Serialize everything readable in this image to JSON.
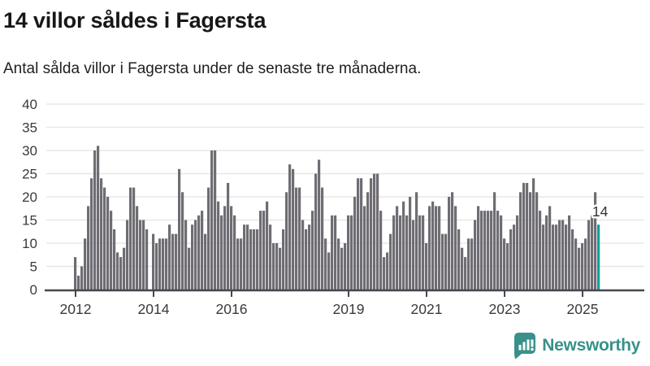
{
  "header": {
    "title": "14 villor såldes i Fagersta",
    "subtitle": "Antal sålda villor i Fagersta under de senaste tre månaderna."
  },
  "annotation": {
    "last_value_label": "14"
  },
  "logo": {
    "text": "Newsworthy"
  },
  "colors": {
    "bar": "#6f6d73",
    "highlight": "#10a09b",
    "grid": "#e7e7e7",
    "axis": "#47474b",
    "tick_text": "#3a3a3f",
    "annotation_text": "#333333",
    "logo": "#38918a"
  },
  "chart_data": {
    "type": "bar",
    "title": "14 villor såldes i Fagersta",
    "subtitle": "Antal sålda villor i Fagersta under de senaste tre månaderna.",
    "x_start": "2012-01",
    "x_end": "2025-06",
    "x_unit": "month",
    "ylim": [
      0,
      40
    ],
    "yticks": [
      0,
      5,
      10,
      15,
      20,
      25,
      30,
      35,
      40
    ],
    "xtick_years": [
      2012,
      2014,
      2016,
      2019,
      2021,
      2023,
      2025
    ],
    "grid": "horizontal",
    "legend": "none",
    "highlight_last_bar": true,
    "last_value": 14,
    "values": [
      7,
      3,
      5,
      11,
      18,
      24,
      30,
      31,
      24,
      22,
      20,
      17,
      13,
      8,
      7,
      9,
      15,
      22,
      22,
      18,
      15,
      15,
      13,
      0,
      12,
      10,
      11,
      11,
      11,
      14,
      12,
      12,
      26,
      21,
      15,
      9,
      14,
      15,
      16,
      17,
      12,
      22,
      30,
      30,
      19,
      16,
      18,
      23,
      18,
      16,
      11,
      11,
      14,
      14,
      13,
      13,
      13,
      17,
      17,
      19,
      14,
      10,
      10,
      9,
      13,
      21,
      27,
      26,
      22,
      22,
      15,
      13,
      14,
      17,
      25,
      28,
      22,
      11,
      8,
      16,
      16,
      11,
      9,
      10,
      16,
      16,
      20,
      24,
      24,
      18,
      21,
      24,
      25,
      25,
      17,
      7,
      8,
      12,
      16,
      18,
      16,
      19,
      16,
      20,
      15,
      21,
      16,
      16,
      10,
      18,
      19,
      18,
      18,
      12,
      12,
      20,
      21,
      18,
      13,
      9,
      7,
      11,
      11,
      15,
      18,
      17,
      17,
      17,
      17,
      21,
      17,
      16,
      11,
      10,
      13,
      14,
      16,
      21,
      23,
      23,
      21,
      24,
      21,
      17,
      14,
      16,
      18,
      14,
      14,
      15,
      15,
      14,
      16,
      13,
      11,
      9,
      10,
      11,
      15,
      16,
      21,
      14
    ]
  }
}
